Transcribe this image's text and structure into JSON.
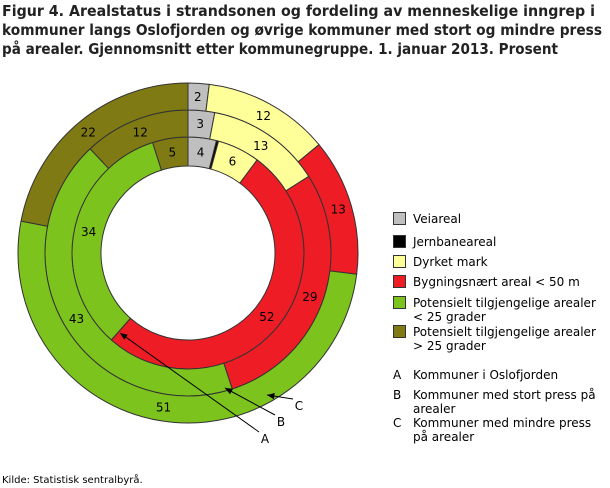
{
  "chart_data": {
    "type": "donut",
    "title": [
      "Figur 4. Arealstatus i strandsonen og fordeling av menneskelige inngrep i",
      "kommuner langs Oslofjorden og øvrige kommuner med stort og mindre press",
      "på arealer. Gjennomsnitt etter kommunegruppe. 1. januar 2013. Prosent"
    ],
    "source": "Kilde: Statistisk sentralbyrå.",
    "categories": [
      "Veiareal",
      "Jernbaneareal",
      "Dyrket mark",
      "Bygningsnært areal < 50 m",
      "Potensielt tilgjengelige arealer < 25 grader",
      "Potensielt tilgjengelige arealer > 25 grader"
    ],
    "colors": [
      "#bfbfbf",
      "#000000",
      "#ffff99",
      "#ee1c25",
      "#7dc31d",
      "#7f7a14"
    ],
    "series": [
      {
        "key": "A",
        "name": "Kommuner i Oslofjorden",
        "values": [
          4,
          0.3,
          6,
          52,
          34,
          5
        ]
      },
      {
        "key": "B",
        "name": "Kommuner med stort press på arealer",
        "values": [
          3,
          0,
          13,
          29,
          43,
          12
        ]
      },
      {
        "key": "C",
        "name": "Kommuner med mindre press på arealer",
        "values": [
          2,
          0,
          12,
          13,
          51,
          22
        ]
      }
    ]
  }
}
